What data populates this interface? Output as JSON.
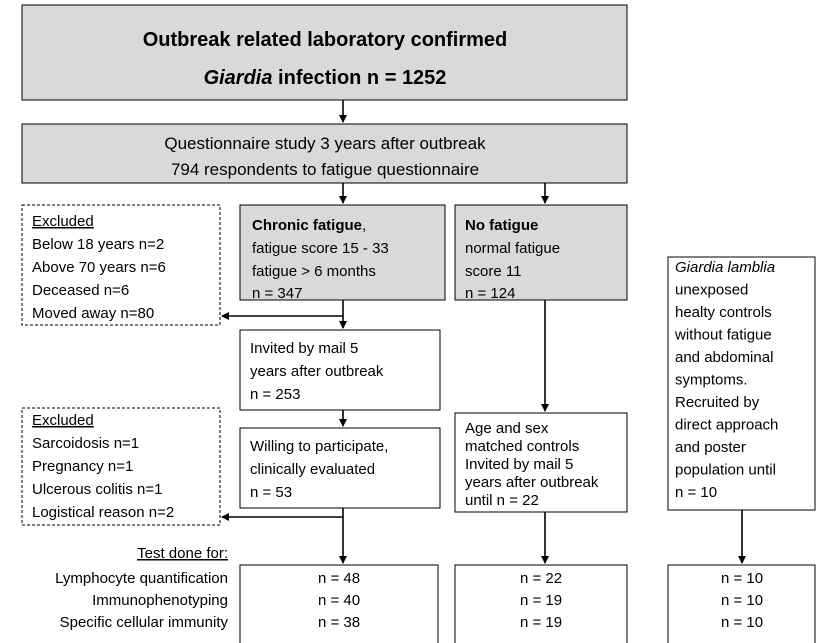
{
  "nodes": [
    {
      "lines": [
        "Outbreak related laboratory confirmed",
        "Giardia",
        " infection n = 1252"
      ]
    },
    {
      "lines": [
        "Questionnaire study 3 years after outbreak",
        "794 respondents to fatigue questionnaire"
      ]
    },
    {
      "lines": [
        "Excluded",
        "Below 18 years n=2",
        "Above 70 years  n=6",
        "Deceased n=6",
        "Moved away  n=80"
      ]
    },
    {
      "lines": [
        "Chronic fatigue",
        ",",
        "fatigue score 15 - 33",
        "fatigue > 6 months",
        "n = 347"
      ]
    },
    {
      "lines": [
        "No fatigue",
        "normal fatigue",
        "score 11",
        "n = 124"
      ]
    },
    {
      "lines": [
        "Giardia lamblia",
        "unexposed",
        "healty controls",
        "without fatigue",
        "and abdominal",
        "symptoms.",
        "Recruited by",
        "direct approach",
        "and poster",
        "population until",
        "n = 10"
      ]
    },
    {
      "lines": [
        "Invited by mail 5",
        "years after outbreak",
        "n = 253"
      ]
    },
    {
      "lines": [
        "Willing to participate,",
        "clinically evaluated",
        "n = 53"
      ]
    },
    {
      "lines": [
        "Excluded",
        "Sarcoidosis n=1",
        "Pregnancy  n=1",
        "Ulcerous colitis n=1",
        "Logistical reason n=2"
      ]
    },
    {
      "lines": [
        "Age and sex",
        "matched controls",
        "Invited by mail  5",
        "years after outbreak",
        "until n = 22"
      ]
    }
  ],
  "tests": {
    "heading": "Test done for:",
    "rows": [
      {
        "label": "Lymphocyte quantification",
        "values": [
          "n = 48",
          "n = 22",
          "n = 10"
        ]
      },
      {
        "label": "Immunophenotyping",
        "values": [
          "n = 40",
          "n = 19",
          "n = 10"
        ]
      },
      {
        "label": "Specific cellular immunity",
        "values": [
          "n = 38",
          "n = 19",
          "n = 10"
        ]
      }
    ]
  }
}
